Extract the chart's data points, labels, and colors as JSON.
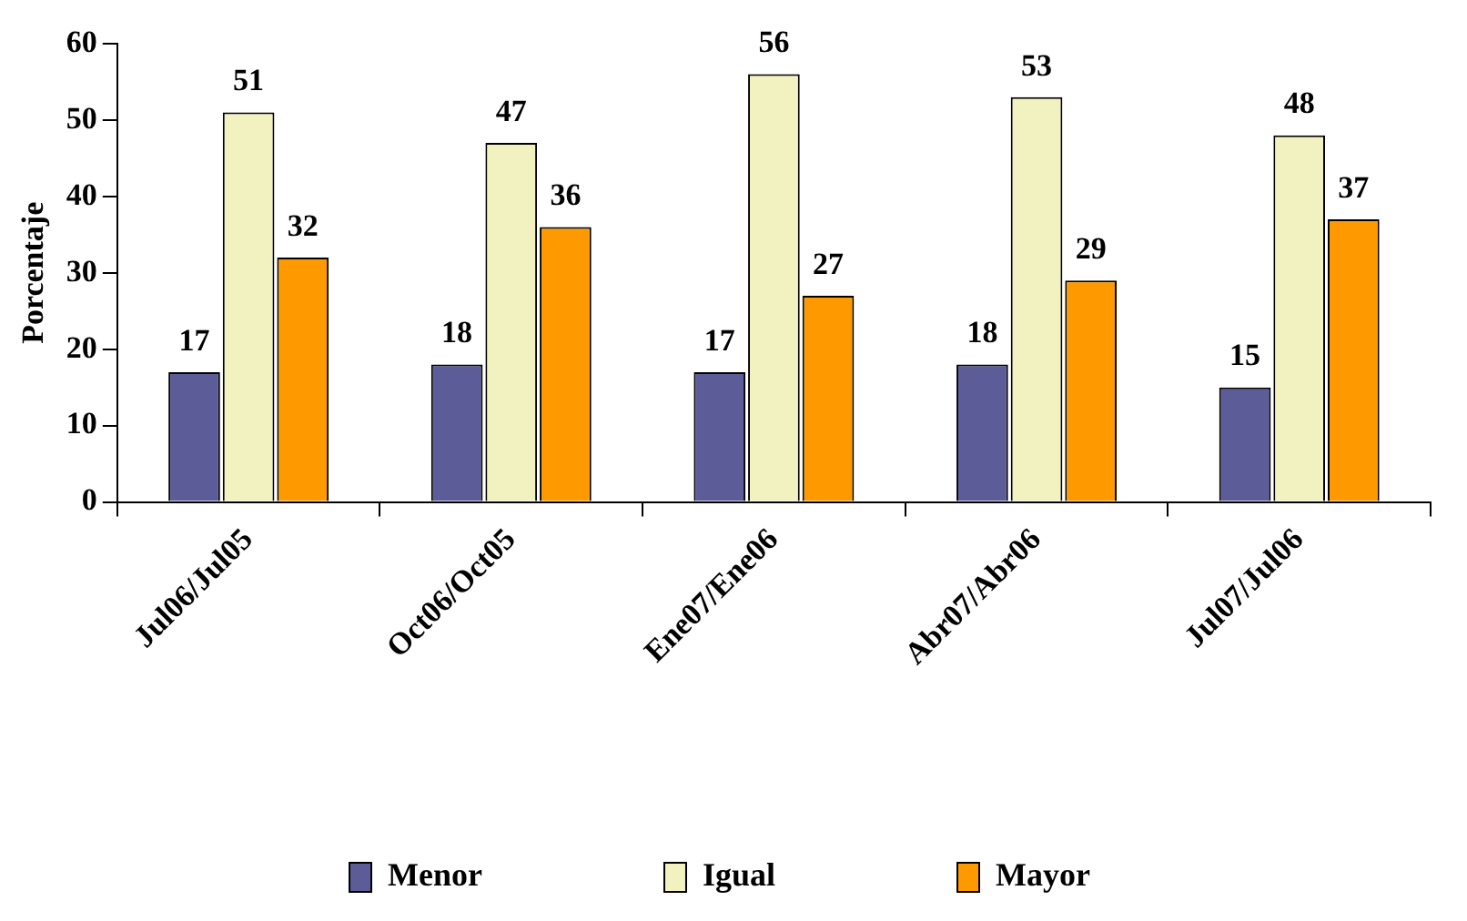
{
  "chart_data": {
    "type": "bar",
    "ylabel": "Porcentaje",
    "categories": [
      "Jul06/Jul05",
      "Oct06/Oct05",
      "Ene07/Ene06",
      "Abr07/Abr06",
      "Jul07/Jul06"
    ],
    "series": [
      {
        "name": "Menor",
        "color": "#5c5c99",
        "values": [
          17,
          18,
          17,
          18,
          15
        ]
      },
      {
        "name": "Igual",
        "color": "#f2f2c0",
        "values": [
          51,
          47,
          56,
          53,
          48
        ]
      },
      {
        "name": "Mayor",
        "color": "#ff9900",
        "values": [
          32,
          36,
          27,
          29,
          37
        ]
      }
    ],
    "ylim": [
      0,
      60
    ],
    "yticks": [
      0,
      10,
      20,
      30,
      40,
      50,
      60
    ],
    "grid": false,
    "legend": "bottom",
    "data_labels": true
  }
}
